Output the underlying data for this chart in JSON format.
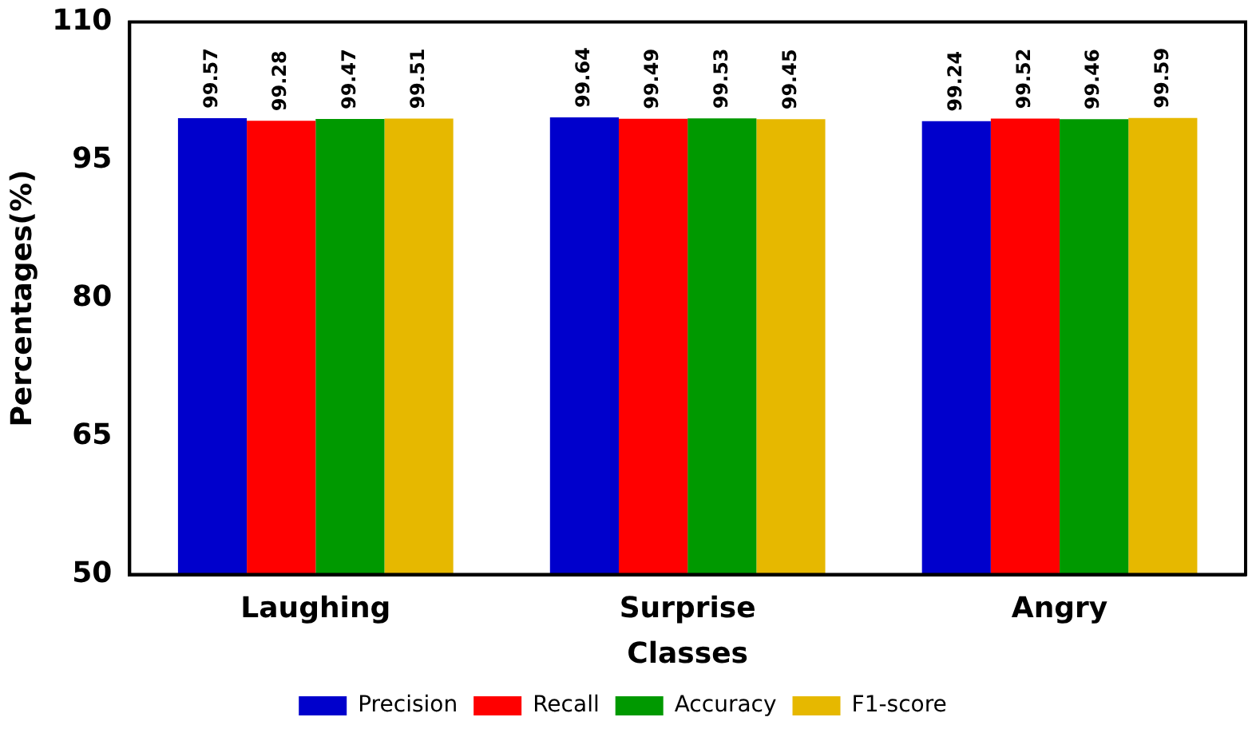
{
  "chart_data": {
    "type": "bar",
    "xlabel": "Classes",
    "ylabel": "Percentages(%)",
    "categories": [
      "Laughing",
      "Surprise",
      "Angry"
    ],
    "series": [
      {
        "name": "Precision",
        "color": "#0000cc",
        "values": [
          99.57,
          99.64,
          99.24
        ]
      },
      {
        "name": "Recall",
        "color": "#ff0000",
        "values": [
          99.28,
          99.49,
          99.52
        ]
      },
      {
        "name": "Accuracy",
        "color": "#009900",
        "values": [
          99.47,
          99.53,
          99.46
        ]
      },
      {
        "name": "F1-score",
        "color": "#e6b800",
        "values": [
          99.51,
          99.45,
          99.59
        ]
      }
    ],
    "ylim": [
      50,
      110
    ],
    "yticks": [
      50,
      65,
      80,
      95,
      110
    ],
    "grid": false,
    "legend": "bottom",
    "data_labels": true
  }
}
